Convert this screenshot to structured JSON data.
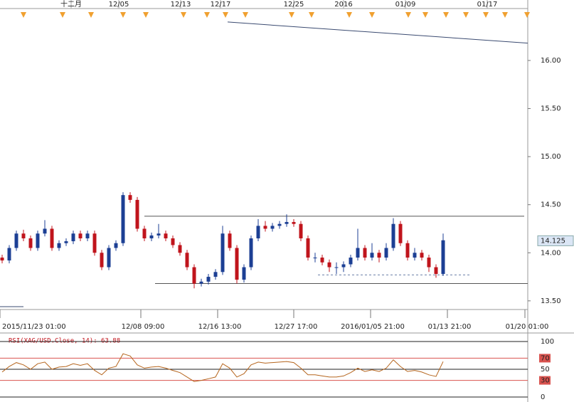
{
  "chart_data": [
    {
      "type": "candlestick",
      "up_color": "#1c3f94",
      "down_color": "#c0141c",
      "xlim": [
        -0.3,
        73.9
      ],
      "ylim": [
        13.41,
        16.54
      ],
      "yticks": [
        {
          "value": 13.5,
          "label": "13.50"
        },
        {
          "value": 14,
          "label": "14.00"
        },
        {
          "value": 14.5,
          "label": "14.50"
        },
        {
          "value": 15,
          "label": "15.00"
        },
        {
          "value": 15.5,
          "label": "15.50"
        },
        {
          "value": 16,
          "label": "16.00"
        }
      ],
      "xticks": [
        {
          "value": -0.3,
          "label": "2015/11/23 01:00"
        },
        {
          "value": 19.5,
          "label": "12/08 09:00"
        },
        {
          "value": 30.3,
          "label": "12/16 13:00"
        },
        {
          "value": 41,
          "label": "12/27 17:00"
        },
        {
          "value": 51.8,
          "label": "2016/01/05 21:00"
        },
        {
          "value": 62.6,
          "label": "01/13 21:00"
        },
        {
          "value": 73.5,
          "label": "01/20 01:00"
        }
      ],
      "top_ticks": [
        {
          "value": 9.7,
          "label": "十二月"
        },
        {
          "value": 16.4,
          "label": "12/05"
        },
        {
          "value": 25.1,
          "label": "12/13"
        },
        {
          "value": 30.7,
          "label": "12/17"
        },
        {
          "value": 41,
          "label": "12/25"
        },
        {
          "value": 48,
          "label": "2016"
        },
        {
          "value": 56.7,
          "label": "01/09"
        },
        {
          "value": 68.2,
          "label": "01/17"
        }
      ],
      "last_price": 14.125,
      "ohlc": [
        [
          13.95,
          13.98,
          13.89,
          13.92
        ],
        [
          13.92,
          14.08,
          13.89,
          14.05
        ],
        [
          14.05,
          14.23,
          14.02,
          14.2
        ],
        [
          14.2,
          14.24,
          14.12,
          14.15
        ],
        [
          14.15,
          14.18,
          14.02,
          14.05
        ],
        [
          14.05,
          14.23,
          14.02,
          14.2
        ],
        [
          14.2,
          14.34,
          14.17,
          14.25
        ],
        [
          14.25,
          14.28,
          14.02,
          14.05
        ],
        [
          14.05,
          14.13,
          14.02,
          14.1
        ],
        [
          14.1,
          14.15,
          14.07,
          14.12
        ],
        [
          14.12,
          14.23,
          14.09,
          14.2
        ],
        [
          14.2,
          14.23,
          14.12,
          14.15
        ],
        [
          14.15,
          14.23,
          14.12,
          14.2
        ],
        [
          14.2,
          14.23,
          13.97,
          14.0
        ],
        [
          14.0,
          14.03,
          13.82,
          13.85
        ],
        [
          13.85,
          14.08,
          13.82,
          14.05
        ],
        [
          14.05,
          14.13,
          14.02,
          14.1
        ],
        [
          14.1,
          14.63,
          14.07,
          14.6
        ],
        [
          14.6,
          14.63,
          14.52,
          14.55
        ],
        [
          14.55,
          14.58,
          14.22,
          14.25
        ],
        [
          14.25,
          14.28,
          14.12,
          14.15
        ],
        [
          14.15,
          14.21,
          14.12,
          14.18
        ],
        [
          14.18,
          14.3,
          14.15,
          14.2
        ],
        [
          14.2,
          14.23,
          14.12,
          14.15
        ],
        [
          14.15,
          14.18,
          14.05,
          14.08
        ],
        [
          14.08,
          14.11,
          13.97,
          14.0
        ],
        [
          14.0,
          14.03,
          13.82,
          13.85
        ],
        [
          13.85,
          13.88,
          13.63,
          13.68
        ],
        [
          13.68,
          13.73,
          13.65,
          13.7
        ],
        [
          13.7,
          13.78,
          13.67,
          13.75
        ],
        [
          13.75,
          13.83,
          13.72,
          13.8
        ],
        [
          13.8,
          14.28,
          13.77,
          14.2
        ],
        [
          14.2,
          14.23,
          14.02,
          14.05
        ],
        [
          14.05,
          14.08,
          13.68,
          13.72
        ],
        [
          13.72,
          13.88,
          13.69,
          13.85
        ],
        [
          13.85,
          14.18,
          13.82,
          14.15
        ],
        [
          14.15,
          14.35,
          14.12,
          14.28
        ],
        [
          14.28,
          14.33,
          14.22,
          14.25
        ],
        [
          14.25,
          14.31,
          14.22,
          14.28
        ],
        [
          14.28,
          14.33,
          14.25,
          14.3
        ],
        [
          14.3,
          14.4,
          14.27,
          14.32
        ],
        [
          14.32,
          14.35,
          14.27,
          14.3
        ],
        [
          14.3,
          14.33,
          14.12,
          14.15
        ],
        [
          14.15,
          14.18,
          13.92,
          13.95
        ],
        [
          13.95,
          14.0,
          13.9,
          13.95
        ],
        [
          13.95,
          13.98,
          13.87,
          13.9
        ],
        [
          13.9,
          13.93,
          13.8,
          13.85
        ],
        [
          13.85,
          13.9,
          13.78,
          13.85
        ],
        [
          13.85,
          13.91,
          13.8,
          13.88
        ],
        [
          13.88,
          13.98,
          13.85,
          13.95
        ],
        [
          13.95,
          14.25,
          13.92,
          14.05
        ],
        [
          14.05,
          14.08,
          13.92,
          13.95
        ],
        [
          13.95,
          14.1,
          13.92,
          14.0
        ],
        [
          14.0,
          14.03,
          13.9,
          13.95
        ],
        [
          13.95,
          14.1,
          13.92,
          14.05
        ],
        [
          14.05,
          14.36,
          14.02,
          14.3
        ],
        [
          14.3,
          14.33,
          14.07,
          14.1
        ],
        [
          14.1,
          14.13,
          13.92,
          13.95
        ],
        [
          13.95,
          14.05,
          13.92,
          14.0
        ],
        [
          14.0,
          14.03,
          13.92,
          13.95
        ],
        [
          13.95,
          13.98,
          13.8,
          13.85
        ],
        [
          13.85,
          13.88,
          13.74,
          13.78
        ],
        [
          13.78,
          14.2,
          13.76,
          14.13
        ]
      ],
      "lines": [
        {
          "x": [
            20.0,
            73.4
          ],
          "y": [
            14.38,
            14.38
          ],
          "color": "#555555",
          "style": "solid"
        },
        {
          "x": [
            21.5,
            73.9
          ],
          "y": [
            13.68,
            13.68
          ],
          "color": "#555555",
          "style": "solid"
        },
        {
          "x": [
            44.4,
            66.0
          ],
          "y": [
            13.77,
            13.77
          ],
          "color": "#6a7fa8",
          "style": "dashed"
        },
        {
          "x": [
            31.7,
            73.9
          ],
          "y": [
            16.4,
            16.18
          ],
          "color": "#3a4a70",
          "style": "solid"
        },
        {
          "x": [
            -0.3,
            3.0
          ],
          "y": [
            13.44,
            13.44
          ],
          "color": "#3a4a70",
          "style": "solid"
        }
      ]
    },
    {
      "type": "line",
      "label": "RSI(XAG/USD.Close, 14): 63.88",
      "color": "#b5651d",
      "xlim": [
        -0.3,
        73.9
      ],
      "ylim": [
        0,
        100
      ],
      "yticks": [
        0,
        30,
        50,
        70,
        100
      ],
      "highlight_ticks": [
        30,
        70
      ],
      "values": [
        45,
        55,
        62,
        58,
        50,
        60,
        63,
        50,
        54,
        55,
        60,
        57,
        60,
        48,
        40,
        52,
        55,
        78,
        74,
        58,
        52,
        54,
        55,
        52,
        48,
        44,
        36,
        28,
        30,
        33,
        36,
        60,
        52,
        36,
        42,
        58,
        63,
        61,
        62,
        63,
        64,
        62,
        52,
        40,
        40,
        38,
        36,
        36,
        38,
        44,
        52,
        46,
        49,
        46,
        52,
        67,
        55,
        46,
        48,
        45,
        40,
        37,
        63.88
      ]
    }
  ]
}
